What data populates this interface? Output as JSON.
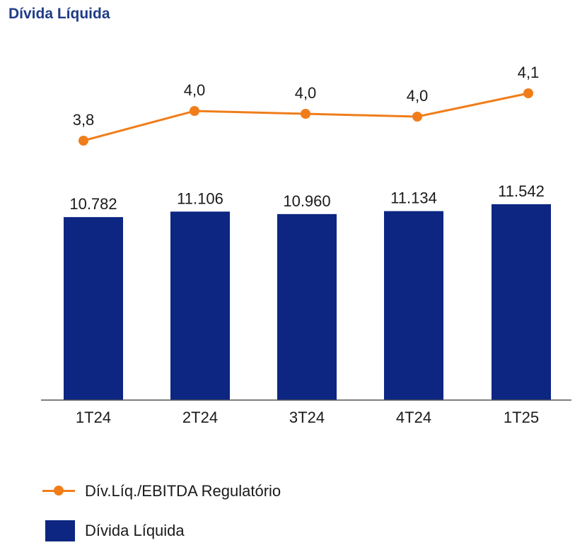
{
  "chart_data": {
    "type": "bar",
    "title": "Dívida Líquida",
    "categories": [
      "1T24",
      "2T24",
      "3T24",
      "4T24",
      "1T25"
    ],
    "series": [
      {
        "name": "Dívida Líquida",
        "type": "bar",
        "values": [
          10782,
          11106,
          10960,
          11134,
          11542
        ],
        "labels": [
          "10.782",
          "11.106",
          "10.960",
          "11.134",
          "11.542"
        ]
      },
      {
        "name": "Dív.Líq./EBITDA Regulatório",
        "type": "line",
        "values": [
          3.8,
          4.0,
          4.0,
          4.0,
          4.1
        ],
        "labels": [
          "3,8",
          "4,0",
          "4,0",
          "4,0",
          "4,1"
        ]
      }
    ],
    "grid": false,
    "legend_position": "bottom-left"
  },
  "colors": {
    "title": "#1f3c88",
    "bar": "#0c2682",
    "line": "#f07d1a",
    "text": "#1a1a1a",
    "axis": "#555555"
  }
}
